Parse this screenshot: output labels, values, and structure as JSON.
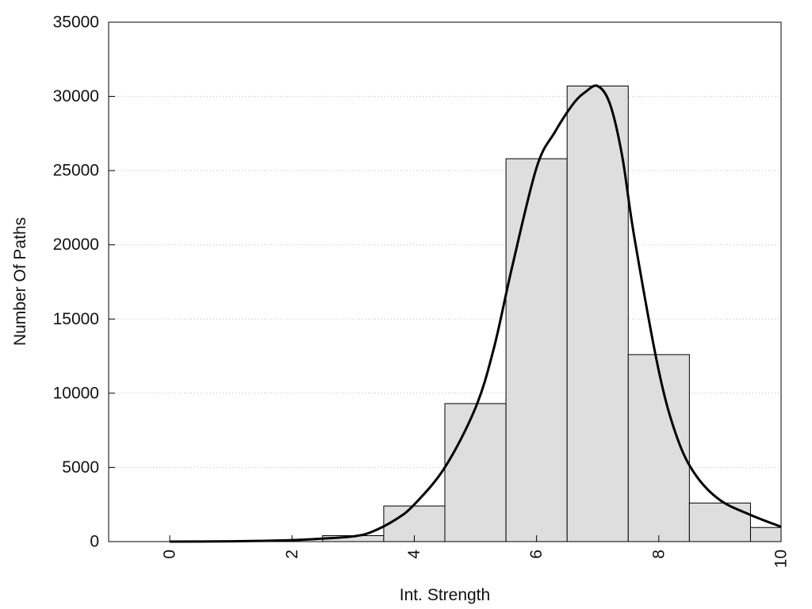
{
  "chart_data": {
    "type": "bar",
    "xlabel": "Int. Strength",
    "ylabel": "Number Of Paths",
    "xlim": [
      -1,
      10
    ],
    "ylim": [
      0,
      35000
    ],
    "x_ticks": [
      0,
      2,
      4,
      6,
      8,
      10
    ],
    "x_tick_labels": [
      "0",
      "2",
      "4",
      "6",
      "8",
      "10"
    ],
    "x_tick_label_rotation": "vertical",
    "y_ticks": [
      0,
      5000,
      10000,
      15000,
      20000,
      25000,
      30000,
      35000
    ],
    "y_tick_labels": [
      "0",
      "5000",
      "10000",
      "15000",
      "20000",
      "25000",
      "30000",
      "35000"
    ],
    "grid": "horizontal dotted",
    "bar_color": "#dedede",
    "line_color": "#000000",
    "bins": [
      {
        "x": 0,
        "value": 0
      },
      {
        "x": 1,
        "value": 0
      },
      {
        "x": 2,
        "value": 0
      },
      {
        "x": 3,
        "value": 400
      },
      {
        "x": 4,
        "value": 2400
      },
      {
        "x": 5,
        "value": 9300
      },
      {
        "x": 6,
        "value": 25800
      },
      {
        "x": 7,
        "value": 30700
      },
      {
        "x": 8,
        "value": 12600
      },
      {
        "x": 9,
        "value": 2600
      },
      {
        "x": 10,
        "value": 950
      }
    ],
    "curve": {
      "x": [
        0,
        1,
        1.5,
        2,
        2.5,
        3,
        3.3,
        3.7,
        4,
        4.5,
        5,
        5.3,
        5.6,
        6,
        6.3,
        6.6,
        6.8,
        7,
        7.2,
        7.4,
        7.6,
        8,
        8.3,
        8.6,
        9,
        9.5,
        10
      ],
      "y": [
        0,
        20,
        50,
        100,
        200,
        350,
        650,
        1500,
        2500,
        5000,
        9000,
        13000,
        18500,
        25200,
        27600,
        29500,
        30300,
        30700,
        29500,
        26000,
        20500,
        11500,
        7000,
        4500,
        2800,
        1800,
        1000
      ]
    }
  }
}
